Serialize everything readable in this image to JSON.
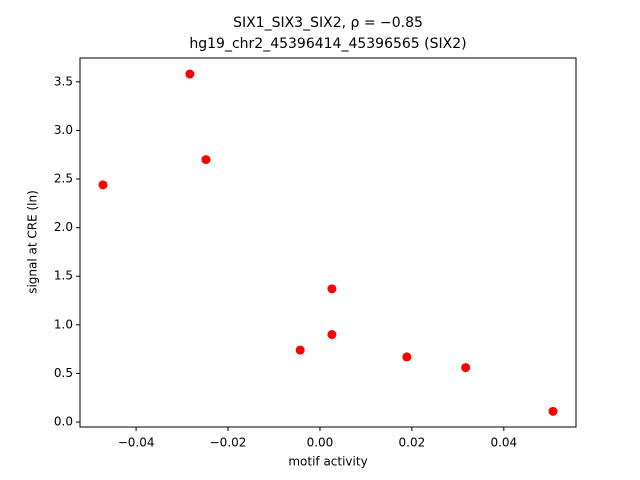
{
  "chart_data": {
    "type": "scatter",
    "title": "SIX1_SIX3_SIX2, ρ = −0.85",
    "subtitle": "hg19_chr2_45396414_45396565 (SIX2)",
    "x_label": "motif activity",
    "y_label": "signal at CRE (ln)",
    "series": [
      {
        "color": "#ff0000",
        "x": [
          -0.0472,
          -0.0283,
          -0.0248,
          -0.0043,
          0.0026,
          0.0026,
          0.0189,
          0.0317,
          0.0507
        ],
        "values": [
          2.44,
          3.58,
          2.7,
          0.74,
          1.37,
          0.9,
          0.67,
          0.56,
          0.11
        ]
      }
    ],
    "xlim": [
      -0.0522,
      0.0557
    ],
    "ylim": [
      -0.051,
      3.745
    ],
    "xticks": [
      {
        "value": -0.04,
        "label": "−0.04"
      },
      {
        "value": -0.02,
        "label": "−0.02"
      },
      {
        "value": 0,
        "label": "0.00"
      },
      {
        "value": 0.02,
        "label": "0.02"
      },
      {
        "value": 0.04,
        "label": "0.04"
      }
    ],
    "yticks": [
      {
        "value": 0,
        "label": "0.0"
      },
      0.5,
      {
        "value": 1,
        "label": "1.0"
      },
      1.5,
      {
        "value": 2,
        "label": "2.0"
      },
      2.5,
      {
        "value": 3,
        "label": "3.0"
      },
      3.5
    ]
  }
}
